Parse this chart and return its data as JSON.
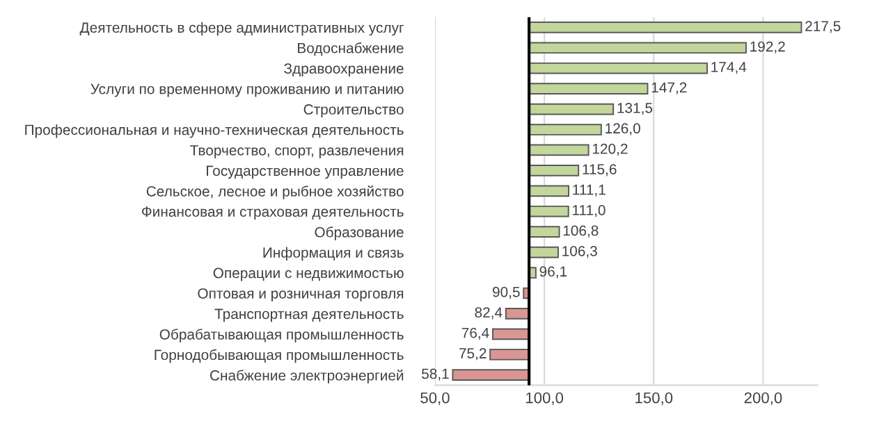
{
  "chart_data": {
    "type": "bar",
    "orientation": "horizontal",
    "categories": [
      "Деятельность в сфере административных услуг",
      "Водоснабжение",
      "Здравоохранение",
      "Услуги по временному проживанию и питанию",
      "Строительство",
      "Профессиональная и научно-техническая деятельность",
      "Творчество, спорт, развлечения",
      "Государственное управление",
      "Сельское, лесное и рыбное хозяйство",
      "Финансовая и страховая деятельность",
      "Образование",
      "Информация и связь",
      "Операции с недвижимостью",
      "Оптовая и розничная торговля",
      "Транспортная деятельность",
      "Обрабатывающая промышленность",
      "Горнодобывающая промышленность",
      "Снабжение электроэнергией"
    ],
    "base": [
      93,
      93,
      93,
      93,
      93,
      93,
      93,
      93,
      93,
      93,
      93,
      93,
      93,
      93,
      93,
      93,
      93,
      93
    ],
    "values": [
      124.5,
      99.2,
      81.4,
      54.2,
      38.5,
      33.0,
      27.2,
      22.6,
      18.1,
      18.0,
      13.8,
      13.3,
      3.1,
      -2.5,
      -10.6,
      -16.6,
      -17.8,
      -34.9
    ],
    "value_labels": [
      "217,5",
      "192,2",
      "174,4",
      "147,2",
      "131,5",
      "126,0",
      "120,2",
      "115,6",
      "111,1",
      "111,0",
      "106,8",
      "106,3",
      "96,1",
      "90,5",
      "82,4",
      "76,4",
      "75,2",
      "58,1"
    ],
    "colors": [
      "#c3d69b",
      "#c3d69b",
      "#c3d69b",
      "#c3d69b",
      "#c3d69b",
      "#c3d69b",
      "#c3d69b",
      "#c3d69b",
      "#c3d69b",
      "#c3d69b",
      "#c3d69b",
      "#c3d69b",
      "#c3d69b",
      "#d99694",
      "#d99694",
      "#d99694",
      "#d99694",
      "#d99694"
    ],
    "xlim": [
      50,
      225
    ],
    "xticks": [
      {
        "value": 50,
        "label": "50,0"
      },
      {
        "value": 100,
        "label": "100,0"
      },
      {
        "value": 150,
        "label": "150,0"
      },
      {
        "value": 200,
        "label": "200,0"
      }
    ],
    "ref_lines": [
      {
        "axis": "x",
        "value": 93,
        "color": "#000000"
      }
    ],
    "grid": "x",
    "legend": false
  }
}
